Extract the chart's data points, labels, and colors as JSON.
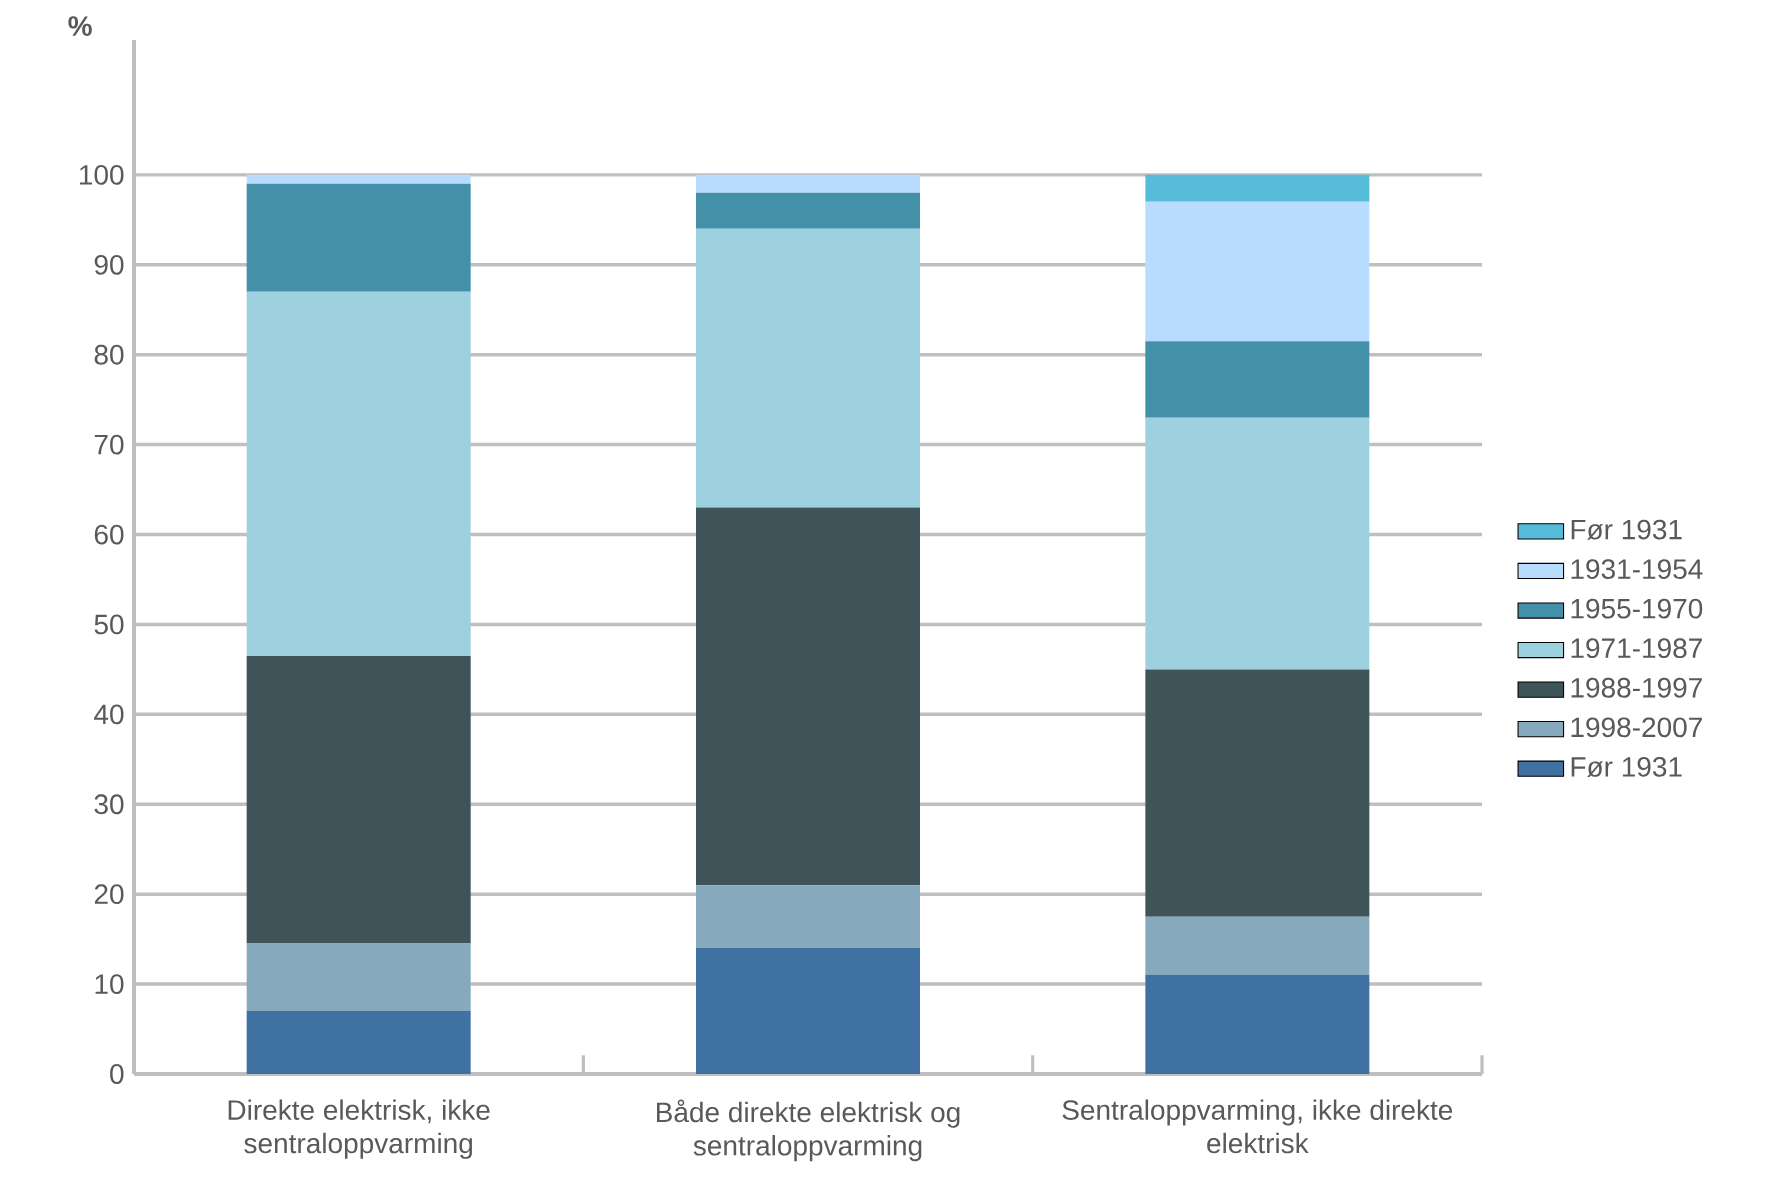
{
  "chart_data": {
    "type": "bar",
    "stacked": true,
    "ylabel": "%",
    "categories": [
      "Direkte elektrisk, ikke sentraloppvarming",
      "Både direkte elektrisk og sentraloppvarming",
      "Sentraloppvarming, ikke direkte elektrisk"
    ],
    "series": [
      {
        "name": "Før 1931",
        "color": "#3f72a3",
        "values": [
          7,
          14,
          11
        ]
      },
      {
        "name": "1998-2007",
        "color": "#87a9be",
        "values": [
          7.5,
          7,
          6.5
        ]
      },
      {
        "name": "1988-1997",
        "color": "#3f5459",
        "values": [
          32,
          42,
          27.5
        ]
      },
      {
        "name": "1971-1987",
        "color": "#9dd1df",
        "values": [
          40.5,
          31,
          28
        ]
      },
      {
        "name": "1955-1970",
        "color": "#4490a8",
        "values": [
          12,
          4,
          8.5
        ]
      },
      {
        "name": "1931-1954",
        "color": "#b8dcfd",
        "values": [
          1,
          2,
          15.5
        ]
      },
      {
        "name": "Før 1931",
        "color": "#57bcd9",
        "values": [
          0,
          0,
          3
        ]
      }
    ],
    "ylim": [
      0,
      115
    ],
    "yticks": [
      0,
      10,
      20,
      30,
      40,
      50,
      60,
      70,
      80,
      90,
      100
    ],
    "grid": "y",
    "legend": "right"
  }
}
